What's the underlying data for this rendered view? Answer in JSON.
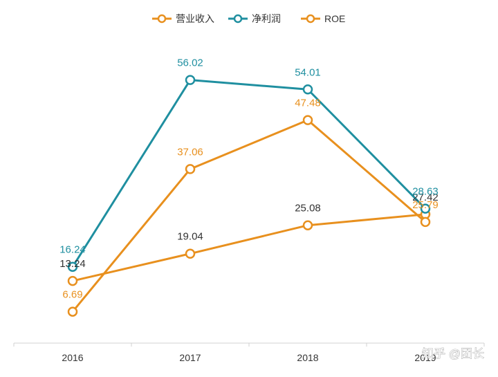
{
  "chart_data": {
    "type": "line",
    "categories": [
      "2016",
      "2017",
      "2018",
      "2019"
    ],
    "series": [
      {
        "name": "营业收入",
        "color": "#E8901E",
        "values": [
          13.24,
          19.04,
          25.08,
          27.42
        ],
        "labels": [
          "13.24",
          "19.04",
          "25.08",
          "27.42"
        ],
        "label_color": "#333333"
      },
      {
        "name": "净利润",
        "color": "#1F8FA0",
        "values": [
          16.24,
          56.02,
          54.01,
          28.63
        ],
        "labels": [
          "16.24",
          "56.02",
          "54.01",
          "28.63"
        ],
        "label_color": "#1F8FA0"
      },
      {
        "name": "ROE",
        "color": "#E8901E",
        "values": [
          6.69,
          37.06,
          47.48,
          25.79
        ],
        "labels": [
          "6.69",
          "37.06",
          "47.48",
          "25.79"
        ],
        "label_color": "#E8901E"
      }
    ],
    "ylim": [
      0,
      62
    ],
    "grid": false,
    "legend": "top-center"
  },
  "watermark": "知乎 @团长"
}
